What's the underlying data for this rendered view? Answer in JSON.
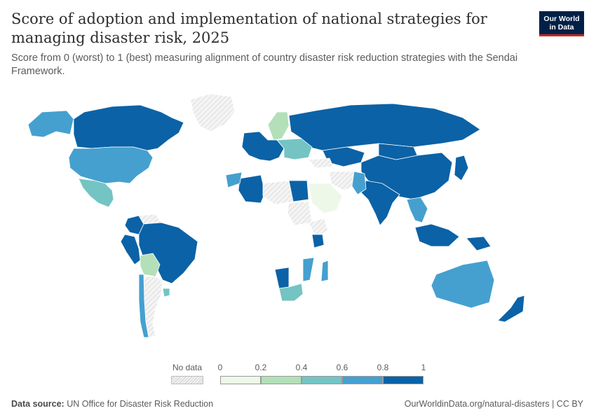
{
  "header": {
    "title": "Score of adoption and implementation of national strategies for managing disaster risk, 2025",
    "subtitle": "Score from 0 (worst) to 1 (best) measuring alignment of country disaster risk reduction strategies with the Sendai Framework.",
    "logo_line1": "Our World",
    "logo_line2": "in Data"
  },
  "legend": {
    "no_data_label": "No data",
    "ticks": [
      "0",
      "0.2",
      "0.4",
      "0.6",
      "0.8",
      "1"
    ],
    "bins": [
      {
        "range": [
          0,
          0.2
        ],
        "color": "#eef8e8"
      },
      {
        "range": [
          0.2,
          0.4
        ],
        "color": "#b3e0b8"
      },
      {
        "range": [
          0.4,
          0.6
        ],
        "color": "#74c4c4"
      },
      {
        "range": [
          0.6,
          0.8
        ],
        "color": "#45a0d0"
      },
      {
        "range": [
          0.8,
          1.0
        ],
        "color": "#0b62a6"
      }
    ],
    "no_data_color": "hatched-grey"
  },
  "map_regions": [
    {
      "name": "Canada",
      "bin": 5
    },
    {
      "name": "United States",
      "bin": 4
    },
    {
      "name": "Mexico",
      "bin": 3
    },
    {
      "name": "Alaska",
      "bin": 4
    },
    {
      "name": "Greenland",
      "bin": 0
    },
    {
      "name": "Colombia",
      "bin": 5
    },
    {
      "name": "Venezuela",
      "bin": 0
    },
    {
      "name": "Peru",
      "bin": 5
    },
    {
      "name": "Brazil",
      "bin": 5
    },
    {
      "name": "Bolivia",
      "bin": 2
    },
    {
      "name": "Argentina",
      "bin": 0
    },
    {
      "name": "Chile",
      "bin": 4
    },
    {
      "name": "Uruguay",
      "bin": 3
    },
    {
      "name": "Russia",
      "bin": 5
    },
    {
      "name": "China",
      "bin": 5
    },
    {
      "name": "India",
      "bin": 5
    },
    {
      "name": "Kazakhstan",
      "bin": 5
    },
    {
      "name": "Mongolia",
      "bin": 5
    },
    {
      "name": "Iran",
      "bin": 0
    },
    {
      "name": "Pakistan",
      "bin": 4
    },
    {
      "name": "Saudi Arabia",
      "bin": 1
    },
    {
      "name": "Egypt",
      "bin": 5
    },
    {
      "name": "Algeria",
      "bin": 5
    },
    {
      "name": "Libya",
      "bin": 0
    },
    {
      "name": "Morocco",
      "bin": 4
    },
    {
      "name": "Sudan",
      "bin": 0
    },
    {
      "name": "Ethiopia",
      "bin": 0
    },
    {
      "name": "Kenya",
      "bin": 5
    },
    {
      "name": "Namibia",
      "bin": 5
    },
    {
      "name": "South Africa",
      "bin": 3
    },
    {
      "name": "Madagascar",
      "bin": 4
    },
    {
      "name": "Mozambique",
      "bin": 4
    },
    {
      "name": "Australia",
      "bin": 4
    },
    {
      "name": "Indonesia",
      "bin": 5
    },
    {
      "name": "Papua New Guinea",
      "bin": 5
    },
    {
      "name": "New Zealand",
      "bin": 5
    },
    {
      "name": "Japan",
      "bin": 5
    },
    {
      "name": "Southeast Asia",
      "bin": 4
    },
    {
      "name": "Scandinavia",
      "bin": 2
    },
    {
      "name": "Western Europe",
      "bin": 5
    },
    {
      "name": "Eastern Europe",
      "bin": 3
    },
    {
      "name": "Turkey",
      "bin": 0
    }
  ],
  "footer": {
    "source_label": "Data source:",
    "source": "UN Office for Disaster Risk Reduction",
    "link": "OurWorldinData.org/natural-disasters | CC BY"
  }
}
